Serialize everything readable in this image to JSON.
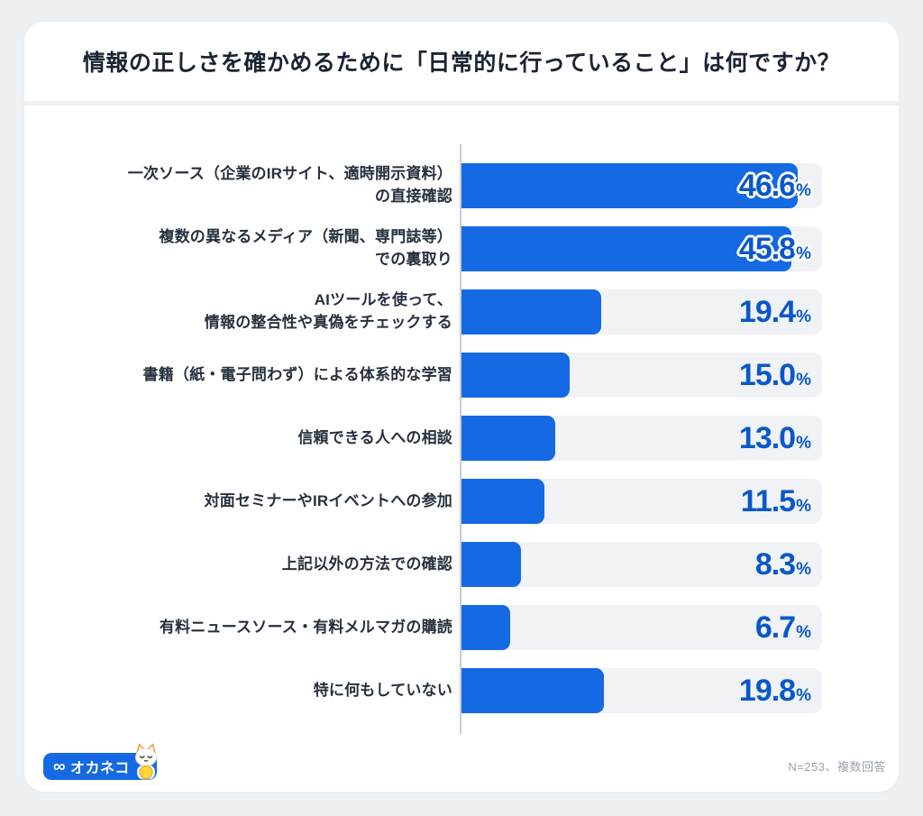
{
  "title": "情報の正しさを確かめるために「日常的に行っていること」は何ですか？",
  "chart_data": {
    "type": "bar",
    "orientation": "horizontal",
    "title": "情報の正しさを確かめるために「日常的に行っていること」は何ですか？",
    "unit": "%",
    "xlim": [
      0,
      50
    ],
    "grid": false,
    "legend": "none",
    "bar_color": "#156ae3",
    "track_color": "#f0f2f5",
    "value_color": "#0a58c8",
    "categories": [
      "一次ソース（企業のIRサイト、適時開示資料）の直接確認",
      "複数の異なるメディア（新聞、専門誌等）での裏取り",
      "AIツールを使って、情報の整合性や真偽をチェックする",
      "書籍（紙・電子問わず）による体系的な学習",
      "信頼できる人への相談",
      "対面セミナーやIRイベントへの参加",
      "上記以外の方法での確認",
      "有料ニュースソース・有料メルマガの購読",
      "特に何もしていない"
    ],
    "values": [
      46.6,
      45.8,
      19.4,
      15.0,
      13.0,
      11.5,
      8.3,
      6.7,
      19.8
    ],
    "items": [
      {
        "lines": [
          "一次ソース（企業のIRサイト、適時開示資料）",
          "の直接確認"
        ],
        "value": 46.6,
        "display": "46.6"
      },
      {
        "lines": [
          "複数の異なるメディア（新聞、専門誌等）",
          "での裏取り"
        ],
        "value": 45.8,
        "display": "45.8"
      },
      {
        "lines": [
          "AIツールを使って、",
          "情報の整合性や真偽をチェックする"
        ],
        "value": 19.4,
        "display": "19.4"
      },
      {
        "lines": [
          "書籍（紙・電子問わず）による体系的な学習"
        ],
        "value": 15.0,
        "display": "15.0"
      },
      {
        "lines": [
          "信頼できる人への相談"
        ],
        "value": 13.0,
        "display": "13.0"
      },
      {
        "lines": [
          "対面セミナーやIRイベントへの参加"
        ],
        "value": 11.5,
        "display": "11.5"
      },
      {
        "lines": [
          "上記以外の方法での確認"
        ],
        "value": 8.3,
        "display": "8.3"
      },
      {
        "lines": [
          "有料ニュースソース・有料メルマガの購読"
        ],
        "value": 6.7,
        "display": "6.7"
      },
      {
        "lines": [
          "特に何もしていない"
        ],
        "value": 19.8,
        "display": "19.8"
      }
    ]
  },
  "footer": {
    "logo_mark": "∞",
    "logo_text": "オカネコ",
    "note": "N=253、複数回答"
  }
}
